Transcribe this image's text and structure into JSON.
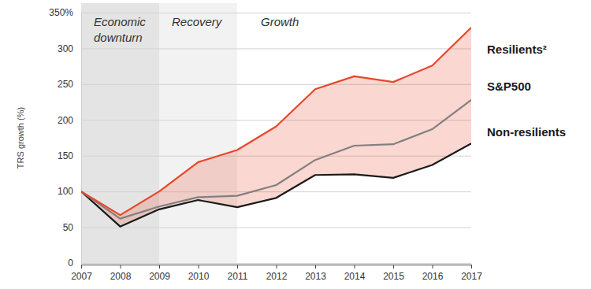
{
  "chart_data": {
    "type": "line",
    "y_label": "TRS growth (%)",
    "x": [
      2007,
      2008,
      2009,
      2010,
      2011,
      2012,
      2013,
      2014,
      2015,
      2016,
      2017
    ],
    "xlim": [
      2007,
      2017
    ],
    "xticks": [
      2007,
      2008,
      2009,
      2010,
      2011,
      2012,
      2013,
      2014,
      2015,
      2016,
      2017
    ],
    "ylim": [
      0,
      350
    ],
    "yticks": [
      0,
      50,
      100,
      150,
      200,
      250,
      300,
      {
        "value": 350,
        "label": "350%"
      }
    ],
    "grid": true,
    "annotations": [
      {
        "text": "Economic downturn",
        "x0": 2007,
        "x1": 2009
      },
      {
        "text": "Recovery",
        "x0": 2009,
        "x1": 2011
      },
      {
        "text": "Growth",
        "x0": 2011,
        "x1": 2017
      }
    ],
    "series": [
      {
        "name": "Resilients²",
        "color": "#e8472b",
        "values": [
          100,
          67,
          100,
          141,
          158,
          191,
          243,
          261,
          253,
          276,
          329
        ]
      },
      {
        "name": "S&P500",
        "color": "#808080",
        "values": [
          100,
          62,
          79,
          92,
          94,
          109,
          144,
          164,
          166,
          187,
          228
        ]
      },
      {
        "name": "Non-resilients",
        "color": "#1a1a1a",
        "values": [
          100,
          51,
          75,
          88,
          78,
          91,
          123,
          124,
          119,
          137,
          167
        ]
      }
    ]
  }
}
